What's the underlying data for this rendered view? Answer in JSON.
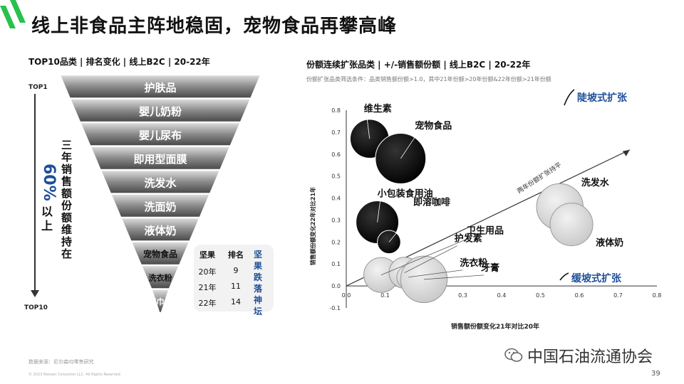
{
  "title": "线上非食品主阵地稳固，宠物食品再攀高峰",
  "left_panel": {
    "subtitle": "TOP10品类 | 排名变化 | 线上B2C | 20-22年",
    "axis_top": "TOP1",
    "axis_bottom": "TOP10",
    "side_label_1": "三年销售额份额维持在",
    "side_label_pct": "60%",
    "side_label_pct_after": "以上",
    "funnel_items": [
      "护肤品",
      "婴儿奶粉",
      "婴儿尿布",
      "即用型面膜",
      "洗发水",
      "洗面奶",
      "液体奶",
      "宠物食品",
      "洗衣粉",
      "面巾纸"
    ],
    "table": {
      "headers": [
        "坚果",
        "排名"
      ],
      "rows": [
        [
          "20年",
          "9"
        ],
        [
          "21年",
          "11"
        ],
        [
          "22年",
          "14"
        ]
      ],
      "side_note": "坚果跌落神坛"
    }
  },
  "right_panel": {
    "subtitle": "份额连续扩张品类 | +/-销售额份额 | 线上B2C | 20-22年",
    "note": "份额扩张品类筛选条件：品类销售额份额>1.0，其中21年份额>20年份额&22年份额>21年份额",
    "steep_label": "陡坡式扩张",
    "gentle_label": "缓坡式扩张",
    "diagonal_label": "两年份额扩张持平"
  },
  "chart_data": {
    "type": "scatter",
    "title": "",
    "xlabel": "销售额份额变化21年对比20年",
    "ylabel": "销售额份额变化22年对比21年",
    "xlim": [
      0.0,
      0.8
    ],
    "ylim": [
      -0.1,
      0.8
    ],
    "x_ticks": [
      "0.0",
      "0.1",
      "0.2",
      "0.3",
      "0.4",
      "0.5",
      "0.6",
      "0.7",
      "0.8"
    ],
    "y_ticks": [
      "-0.1",
      "0.0",
      "0.1",
      "0.2",
      "0.3",
      "0.4",
      "0.5",
      "0.6",
      "0.7",
      "0.8"
    ],
    "points": [
      {
        "name": "维生素",
        "x": 0.06,
        "y": 0.67,
        "size": 0.05,
        "fill": "#111111"
      },
      {
        "name": "宠物食品",
        "x": 0.14,
        "y": 0.58,
        "size": 0.065,
        "fill": "#111111"
      },
      {
        "name": "小包装食用油",
        "x": 0.08,
        "y": 0.29,
        "size": 0.055,
        "fill": "#111111"
      },
      {
        "name": "即溶咖啡",
        "x": 0.11,
        "y": 0.2,
        "size": 0.03,
        "fill": "#111111"
      },
      {
        "name": "洗发水",
        "x": 0.55,
        "y": 0.36,
        "size": 0.06,
        "fill": "#d3d3d3"
      },
      {
        "name": "液体奶",
        "x": 0.58,
        "y": 0.28,
        "size": 0.055,
        "fill": "#d3d3d3"
      },
      {
        "name": "卫生用品",
        "x": 0.09,
        "y": 0.05,
        "size": 0.045,
        "fill": "#d3d3d3"
      },
      {
        "name": "护发素",
        "x": 0.15,
        "y": 0.06,
        "size": 0.04,
        "fill": "#d3d3d3"
      },
      {
        "name": "洗衣粉",
        "x": 0.16,
        "y": 0.04,
        "size": 0.03,
        "fill": "#d3d3d3"
      },
      {
        "name": "牙膏",
        "x": 0.2,
        "y": 0.03,
        "size": 0.06,
        "fill": "#d3d3d3"
      }
    ]
  },
  "footer": {
    "source": "数据来源：尼尔森IQ零售研究",
    "copyright": "© 2023 Nielsen Consumer LLC. All Rights Reserved.",
    "wechat_name": "中国石油流通协会",
    "page": "39"
  }
}
